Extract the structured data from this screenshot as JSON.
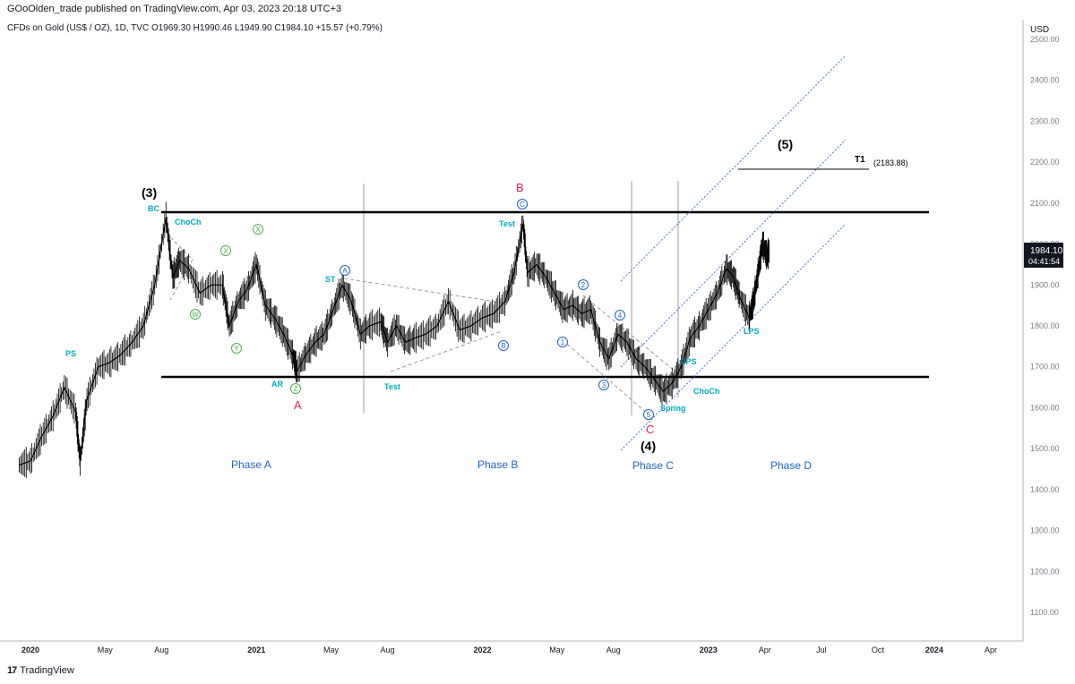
{
  "header": {
    "published_line": "GOoOlden_trade published on TradingView.com, Apr 03, 2023 20:18 UTC+3",
    "symbol_line": "CFDs on Gold (US$ / OZ), 1D, TVC  O1969.30  H1990.46  L1949.90  C1984.10  +15.57 (+0.79%)"
  },
  "footer": {
    "brand": "TradingView",
    "logo": "17"
  },
  "colors": {
    "teal": "#00bcd4",
    "blue": "#1e63c9",
    "green": "#4caf50",
    "red": "#e91e63",
    "black": "#000000",
    "gray": "#9e9e9e"
  },
  "chart_data": {
    "type": "line",
    "title": "CFDs on Gold (US$ / OZ), 1D, TVC",
    "currency": "USD",
    "ylim": [
      1050,
      2550
    ],
    "y_ticks": [
      "2500.00",
      "2400.00",
      "2300.00",
      "2200.00",
      "2100.00",
      "2000.00",
      "1900.00",
      "1800.00",
      "1700.00",
      "1600.00",
      "1500.00",
      "1400.00",
      "1300.00",
      "1200.00",
      "1100.00"
    ],
    "y_tick_values": [
      2500,
      2400,
      2300,
      2200,
      2100,
      2000,
      1900,
      1800,
      1700,
      1600,
      1500,
      1400,
      1300,
      1200,
      1100
    ],
    "x_range": [
      2019.95,
      2024.55
    ],
    "x_ticks": [
      {
        "label": "2020",
        "t": 2020.0,
        "bold": true
      },
      {
        "label": "May",
        "t": 2020.33
      },
      {
        "label": "Aug",
        "t": 2020.58
      },
      {
        "label": "2021",
        "t": 2021.0,
        "bold": true
      },
      {
        "label": "May",
        "t": 2021.33
      },
      {
        "label": "Aug",
        "t": 2021.58
      },
      {
        "label": "2022",
        "t": 2022.0,
        "bold": true
      },
      {
        "label": "May",
        "t": 2022.33
      },
      {
        "label": "Aug",
        "t": 2022.58
      },
      {
        "label": "2023",
        "t": 2023.0,
        "bold": true
      },
      {
        "label": "Apr",
        "t": 2023.25
      },
      {
        "label": "Jul",
        "t": 2023.5
      },
      {
        "label": "Oct",
        "t": 2023.75
      },
      {
        "label": "2024",
        "t": 2024.0,
        "bold": true
      },
      {
        "label": "Apr",
        "t": 2024.25
      }
    ],
    "price_series": {
      "name": "Gold daily close (approx.)",
      "points": [
        [
          2019.95,
          1460
        ],
        [
          2020.0,
          1470
        ],
        [
          2020.05,
          1530
        ],
        [
          2020.1,
          1580
        ],
        [
          2020.15,
          1650
        ],
        [
          2020.2,
          1590
        ],
        [
          2020.22,
          1470
        ],
        [
          2020.25,
          1620
        ],
        [
          2020.3,
          1700
        ],
        [
          2020.35,
          1710
        ],
        [
          2020.4,
          1730
        ],
        [
          2020.45,
          1760
        ],
        [
          2020.5,
          1800
        ],
        [
          2020.55,
          1900
        ],
        [
          2020.6,
          2065
        ],
        [
          2020.63,
          1920
        ],
        [
          2020.66,
          1960
        ],
        [
          2020.7,
          1940
        ],
        [
          2020.75,
          1880
        ],
        [
          2020.8,
          1900
        ],
        [
          2020.85,
          1900
        ],
        [
          2020.88,
          1800
        ],
        [
          2020.92,
          1860
        ],
        [
          2020.96,
          1890
        ],
        [
          2021.0,
          1950
        ],
        [
          2021.04,
          1850
        ],
        [
          2021.08,
          1820
        ],
        [
          2021.12,
          1780
        ],
        [
          2021.16,
          1730
        ],
        [
          2021.18,
          1690
        ],
        [
          2021.22,
          1730
        ],
        [
          2021.26,
          1760
        ],
        [
          2021.3,
          1780
        ],
        [
          2021.34,
          1840
        ],
        [
          2021.38,
          1900
        ],
        [
          2021.42,
          1860
        ],
        [
          2021.46,
          1780
        ],
        [
          2021.5,
          1800
        ],
        [
          2021.55,
          1810
        ],
        [
          2021.58,
          1760
        ],
        [
          2021.62,
          1800
        ],
        [
          2021.66,
          1760
        ],
        [
          2021.7,
          1770
        ],
        [
          2021.75,
          1780
        ],
        [
          2021.8,
          1800
        ],
        [
          2021.85,
          1860
        ],
        [
          2021.9,
          1790
        ],
        [
          2021.95,
          1800
        ],
        [
          2022.0,
          1820
        ],
        [
          2022.05,
          1830
        ],
        [
          2022.1,
          1860
        ],
        [
          2022.14,
          1930
        ],
        [
          2022.18,
          2050
        ],
        [
          2022.2,
          1930
        ],
        [
          2022.24,
          1950
        ],
        [
          2022.28,
          1920
        ],
        [
          2022.32,
          1880
        ],
        [
          2022.36,
          1840
        ],
        [
          2022.4,
          1850
        ],
        [
          2022.44,
          1830
        ],
        [
          2022.48,
          1840
        ],
        [
          2022.52,
          1760
        ],
        [
          2022.56,
          1720
        ],
        [
          2022.6,
          1780
        ],
        [
          2022.64,
          1760
        ],
        [
          2022.68,
          1720
        ],
        [
          2022.72,
          1700
        ],
        [
          2022.76,
          1670
        ],
        [
          2022.8,
          1640
        ],
        [
          2022.84,
          1660
        ],
        [
          2022.88,
          1700
        ],
        [
          2022.92,
          1770
        ],
        [
          2022.96,
          1800
        ],
        [
          2023.0,
          1840
        ],
        [
          2023.04,
          1880
        ],
        [
          2023.08,
          1940
        ],
        [
          2023.11,
          1920
        ],
        [
          2023.14,
          1870
        ],
        [
          2023.18,
          1820
        ],
        [
          2023.2,
          1860
        ],
        [
          2023.22,
          1930
        ],
        [
          2023.24,
          2000
        ],
        [
          2023.26,
          1970
        ],
        [
          2023.27,
          1984
        ]
      ]
    },
    "last_price": "1984.10",
    "countdown": "04:41:54",
    "annotations": {
      "wave_3": "(3)",
      "wave_4": "(4)",
      "wave_5": "(5)",
      "t1_label": "T1",
      "t1_value": "(2183.88)",
      "A": "A",
      "B": "B",
      "C": "C",
      "BC": "BC",
      "PS": "PS",
      "AR": "AR",
      "ST": "ST",
      "ChoCh1": "ChoCh",
      "ChoCh2": "ChoCh",
      "Test1": "Test",
      "Test2": "Test",
      "Spring": "Spring",
      "LPS1": "LPS",
      "LPS2": "LPS",
      "phase_a": "Phase A",
      "phase_b": "Phase B",
      "phase_c": "Phase C",
      "phase_d": "Phase D",
      "circ_W": "W",
      "circ_X1": "X",
      "circ_X2": "X",
      "circ_Y": "Y",
      "circ_Z": "Z",
      "circ_A": "A",
      "circ_B": "B",
      "circ_C": "C",
      "circ_1": "1",
      "circ_2": "2",
      "circ_3": "3",
      "circ_4": "4",
      "circ_5": "5"
    }
  }
}
